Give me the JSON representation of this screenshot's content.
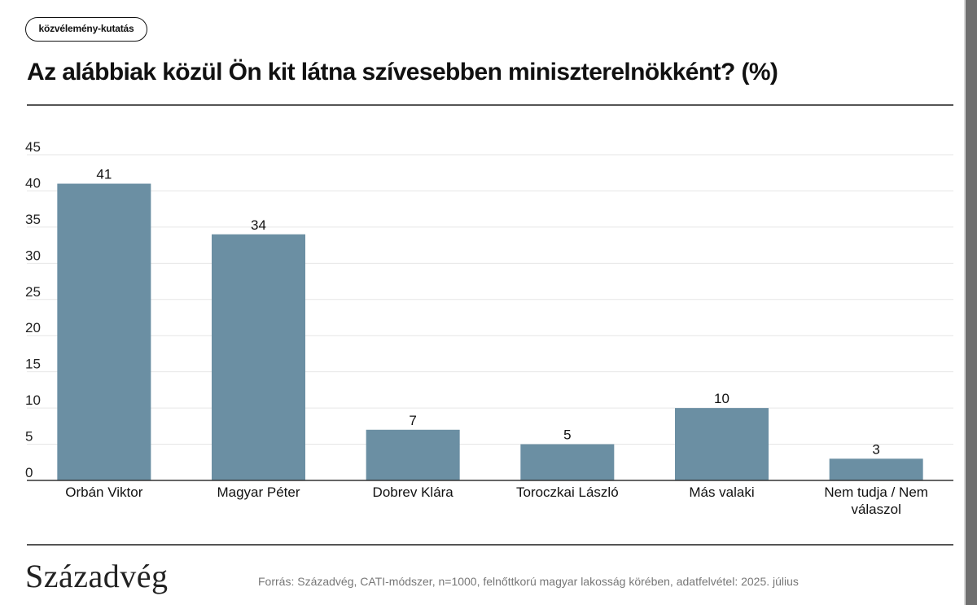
{
  "tag": "közvélemény-kutatás",
  "title": "Az alábbiak közül Ön kit látna szívesebben miniszterelnökként? (%)",
  "logo": "Századvég",
  "source": "Forrás: Századvég, CATI-módszer, n=1000, felnőttkorú magyar lakosság körében, adatfelvétel: 2025. július",
  "colors": {
    "bar": "#6b8fa3",
    "grid": "#e6e6e6",
    "axis": "#333333"
  },
  "chart_data": {
    "type": "bar",
    "categories": [
      "Orbán Viktor",
      "Magyar Péter",
      "Dobrev Klára",
      "Toroczkai László",
      "Más valaki",
      "Nem tudja / Nem válaszol"
    ],
    "values": [
      41,
      34,
      7,
      5,
      10,
      3
    ],
    "ylim": [
      0,
      45
    ],
    "yticks": [
      0,
      5,
      10,
      15,
      20,
      25,
      30,
      35,
      40,
      45
    ],
    "grid": true,
    "data_labels": true
  }
}
